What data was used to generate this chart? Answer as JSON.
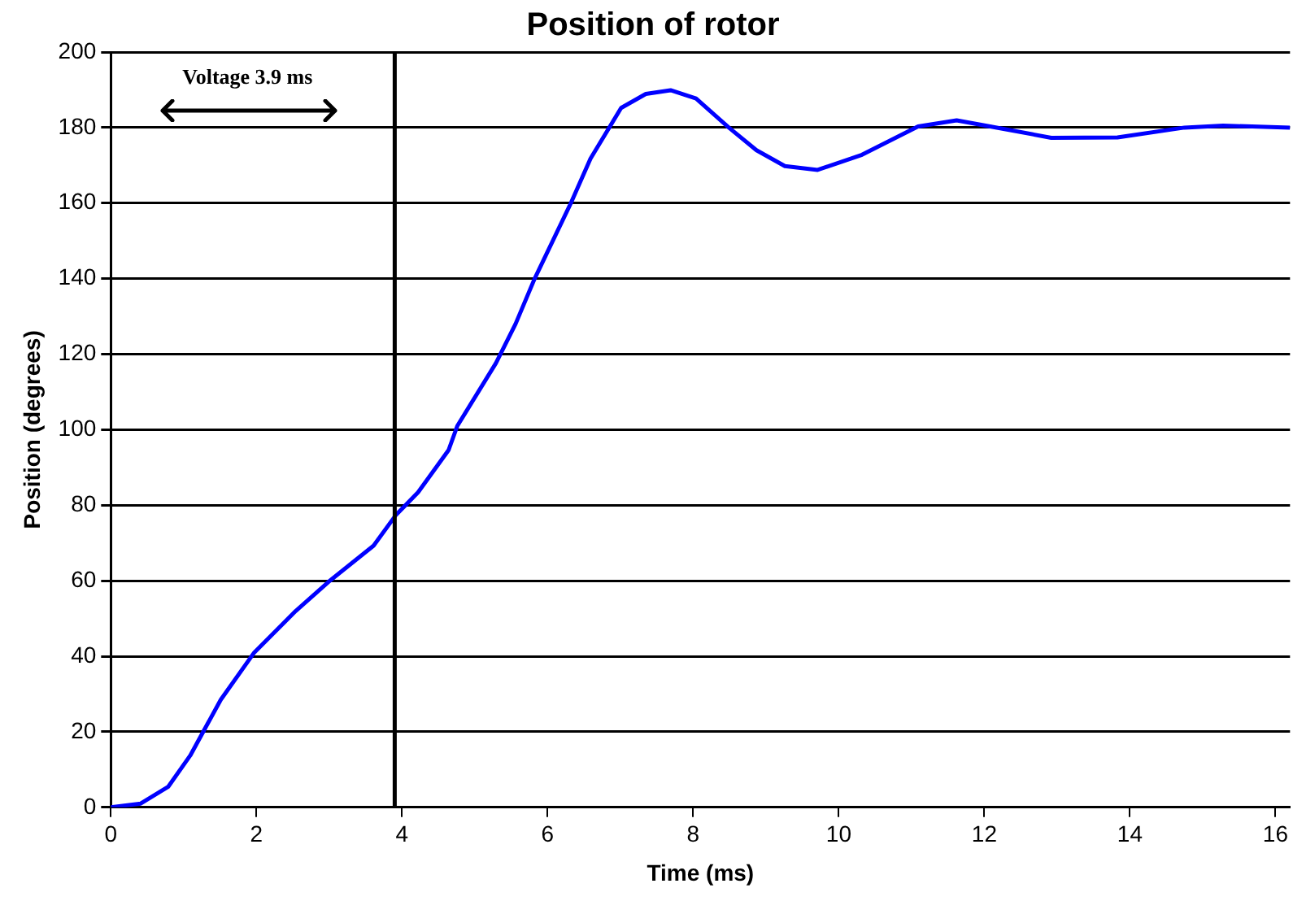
{
  "chart_data": {
    "type": "line",
    "title": "Position of rotor",
    "xlabel": "Time (ms)",
    "ylabel": "Position (degrees)",
    "annotations": [
      "Voltage 3.9 ms"
    ],
    "ref_lines": [
      {
        "axis": "x",
        "value": 3.9,
        "color": "#000000"
      }
    ],
    "xlim": [
      0,
      16.2
    ],
    "xticks": [
      0,
      2,
      4,
      6,
      8,
      10,
      12,
      14,
      16
    ],
    "ylim": [
      0,
      200
    ],
    "yticks": [
      0,
      20,
      40,
      60,
      80,
      100,
      120,
      140,
      160,
      180,
      200
    ],
    "grid": "y",
    "legend": false,
    "marker": "none",
    "line_style": "solid",
    "series": [
      {
        "color": "#0000ff",
        "x": [
          0,
          0.41,
          0.79,
          1.09,
          1.32,
          1.51,
          1.97,
          2.54,
          2.99,
          3.61,
          3.92,
          4.22,
          4.64,
          4.76,
          5.29,
          5.56,
          5.82,
          6.32,
          6.59,
          7.01,
          7.35,
          7.69,
          8.04,
          8.49,
          8.87,
          9.26,
          9.71,
          10.32,
          11.09,
          11.62,
          12.08,
          12.92,
          13.83,
          14.75,
          15.28,
          16.2
        ],
        "values": [
          0,
          1,
          5.5,
          13.7,
          21.8,
          28.5,
          41,
          52,
          59.7,
          69.3,
          77.5,
          83.4,
          94.6,
          101,
          117.6,
          128,
          139.9,
          160,
          171.8,
          185.2,
          188.9,
          189.9,
          187.7,
          180,
          174,
          169.8,
          168.8,
          172.8,
          180.3,
          181.9,
          180.3,
          177.3,
          177.4,
          180,
          180.5,
          180
        ]
      }
    ]
  }
}
